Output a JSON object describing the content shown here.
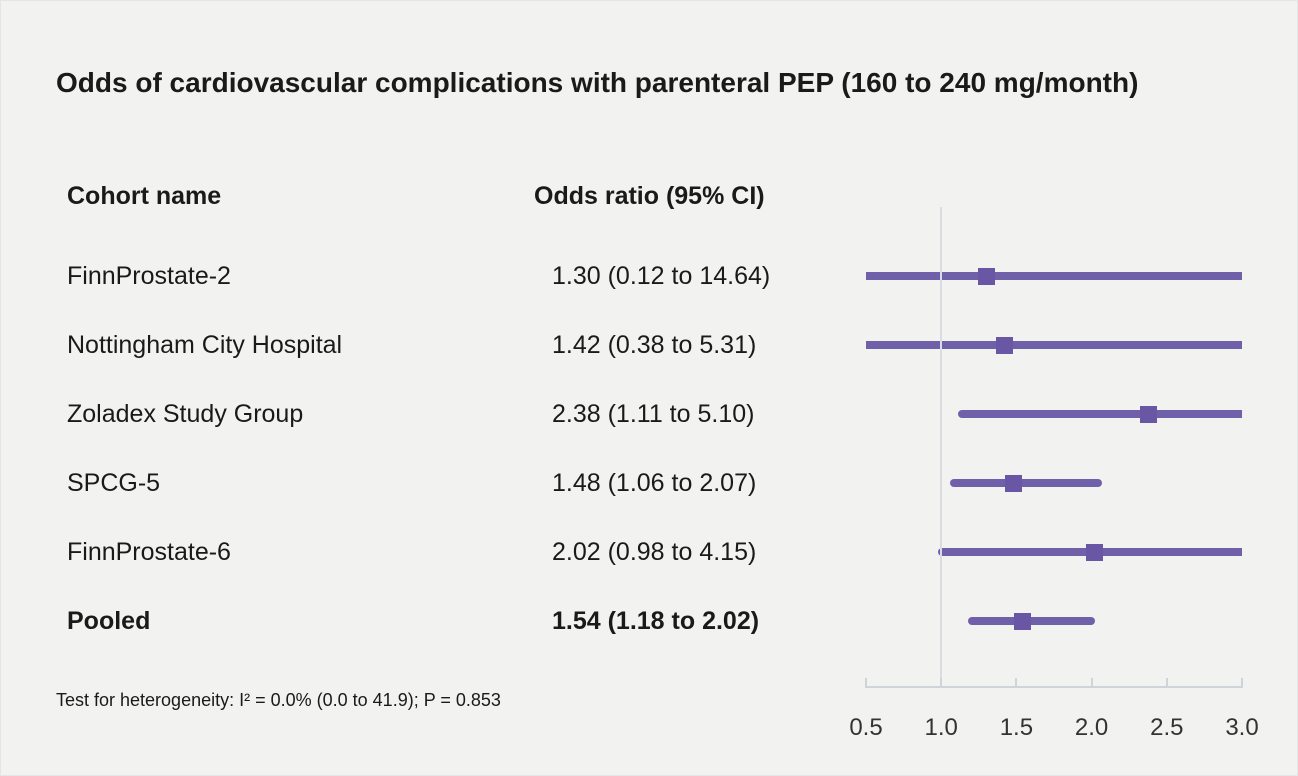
{
  "title": "Odds of cardiovascular complications with parenteral PEP (160 to 240 mg/month)",
  "columns": {
    "cohort": "Cohort name",
    "odds_ratio": "Odds ratio (95% CI)"
  },
  "footnote": "Test for heterogeneity: I² = 0.0% (0.0 to 41.9); P = 0.853",
  "colors": {
    "background": "#f2f2f1",
    "text": "#1a1a1a",
    "ci_line": "#7060aa",
    "marker": "#6956a4",
    "reference_line": "#d9dce3",
    "axis": "#cfd4db",
    "tick_label": "#333333"
  },
  "chart_data": {
    "type": "scatter",
    "subtype": "forest-plot",
    "title": "Odds of cardiovascular complications with parenteral PEP (160 to 240 mg/month)",
    "xlabel": "",
    "ylabel": "",
    "legend": null,
    "grid": false,
    "x_axis": {
      "min": 0.5,
      "max": 3.0,
      "tick_values": [
        0.5,
        1.0,
        1.5,
        2.0,
        2.5,
        3.0
      ],
      "tick_labels": [
        "0.5",
        "1.0",
        "1.5",
        "2.0",
        "2.5",
        "3.0"
      ],
      "reference_line_value": 1.0
    },
    "rows": [
      {
        "label": "FinnProstate-2",
        "or_text": "1.30 (0.12 to 14.64)",
        "or": 1.3,
        "ci_low": 0.12,
        "ci_high": 14.64,
        "bold": false
      },
      {
        "label": "Nottingham City Hospital",
        "or_text": "1.42 (0.38 to 5.31)",
        "or": 1.42,
        "ci_low": 0.38,
        "ci_high": 5.31,
        "bold": false
      },
      {
        "label": "Zoladex Study Group",
        "or_text": "2.38 (1.11 to 5.10)",
        "or": 2.38,
        "ci_low": 1.11,
        "ci_high": 5.1,
        "bold": false
      },
      {
        "label": "SPCG-5",
        "or_text": "1.48 (1.06 to 2.07)",
        "or": 1.48,
        "ci_low": 1.06,
        "ci_high": 2.07,
        "bold": false
      },
      {
        "label": "FinnProstate-6",
        "or_text": "2.02 (0.98 to 4.15)",
        "or": 2.02,
        "ci_low": 0.98,
        "ci_high": 4.15,
        "bold": false
      },
      {
        "label": "Pooled",
        "or_text": "1.54 (1.18 to 2.02)",
        "or": 1.54,
        "ci_low": 1.18,
        "ci_high": 2.02,
        "bold": true
      }
    ]
  }
}
